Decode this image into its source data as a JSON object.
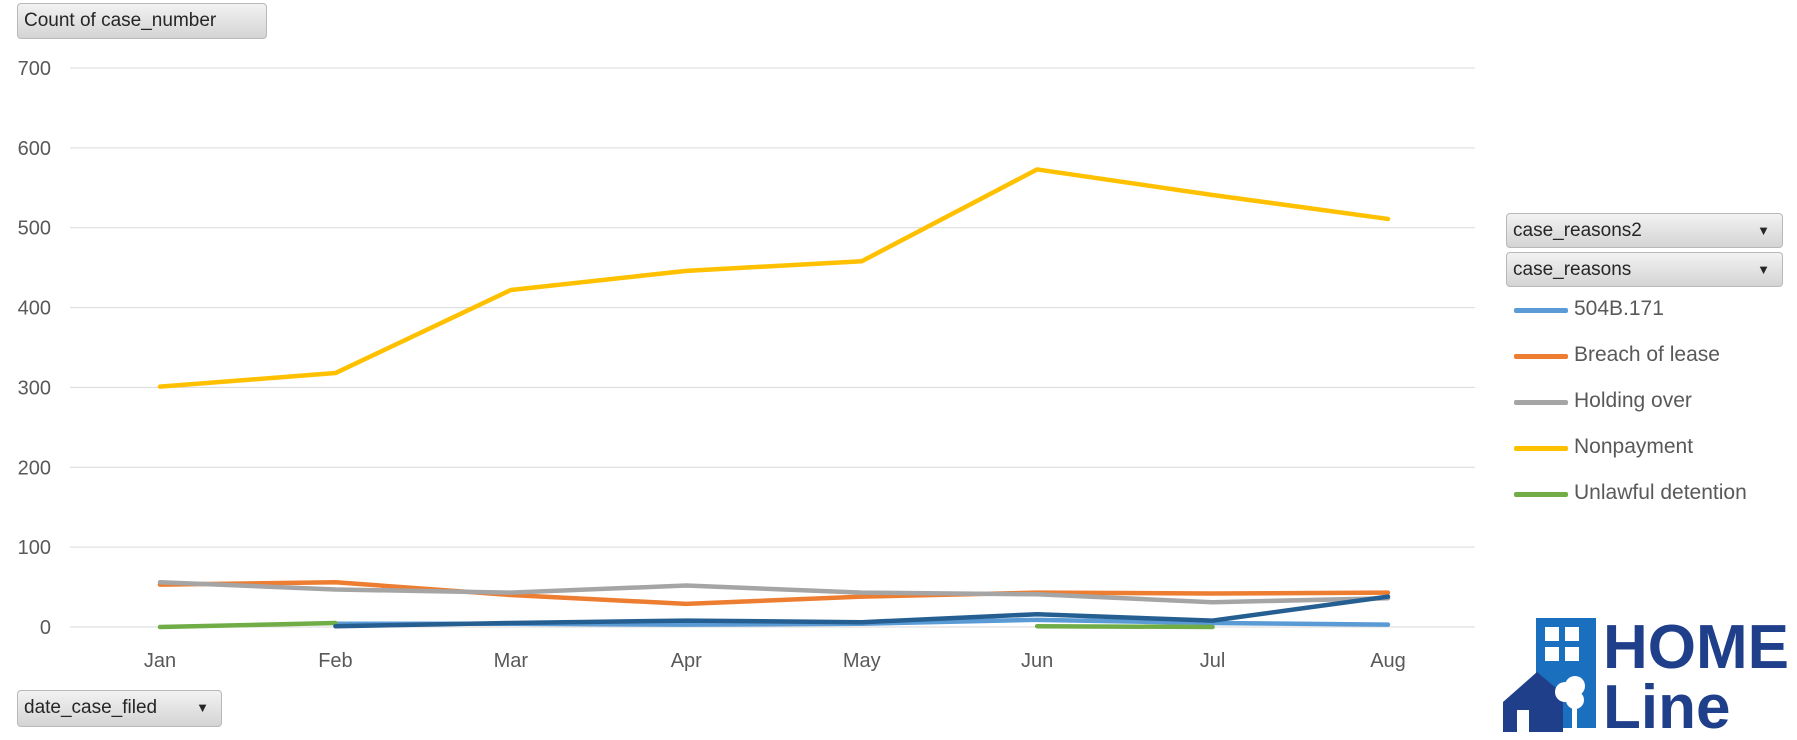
{
  "pivot": {
    "values_field": "Count of case_number",
    "axis_field": "date_case_filed",
    "legend_fields": [
      "case_reasons2",
      "case_reasons"
    ]
  },
  "logo": {
    "line1": "HOME",
    "line2": "Line",
    "color": "#1f3f8a",
    "accent": "#1a6fbf"
  },
  "chart_data": {
    "type": "line",
    "categories": [
      "Jan",
      "Feb",
      "Mar",
      "Apr",
      "May",
      "Jun",
      "Jul",
      "Aug"
    ],
    "ylim": [
      0,
      700
    ],
    "yticks": [
      0,
      100,
      200,
      300,
      400,
      500,
      600,
      700
    ],
    "grid": true,
    "legend_position": "right",
    "series": [
      {
        "name": "504B.171",
        "color": "#5b9bd5",
        "values": [
          null,
          4,
          4,
          3,
          4,
          9,
          5,
          3
        ]
      },
      {
        "name": "Breach of lease",
        "color": "#ed7d31",
        "values": [
          53,
          56,
          40,
          29,
          38,
          43,
          42,
          43
        ]
      },
      {
        "name": "Holding over",
        "color": "#a5a5a5",
        "values": [
          56,
          47,
          43,
          52,
          43,
          41,
          31,
          36
        ]
      },
      {
        "name": "Nonpayment",
        "color": "#ffc000",
        "values": [
          301,
          318,
          422,
          446,
          458,
          573,
          541,
          511
        ]
      },
      {
        "name": "Unlawful detention",
        "color": "#70ad47",
        "values": [
          0,
          5,
          null,
          null,
          null,
          1,
          0,
          null
        ]
      },
      {
        "name": "",
        "color": "#255e91",
        "values": [
          null,
          1,
          5,
          8,
          6,
          16,
          8,
          38
        ]
      }
    ]
  }
}
